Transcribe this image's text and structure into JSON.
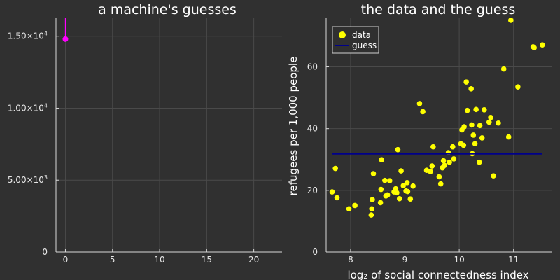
{
  "colors": {
    "background": "#303030",
    "loss": "#ff00ff",
    "data": "#ffff00",
    "guess": "#00008b"
  },
  "chart_data": [
    {
      "type": "line",
      "title": "a machine's guesses",
      "xlabel": "",
      "ylabel": "",
      "xlim": [
        -1,
        23
      ],
      "ylim": [
        0,
        16300
      ],
      "xticks": [
        {
          "v": 0,
          "label": "0"
        },
        {
          "v": 5,
          "label": "5"
        },
        {
          "v": 10,
          "label": "10"
        },
        {
          "v": 15,
          "label": "15"
        },
        {
          "v": 20,
          "label": "20"
        }
      ],
      "yticks": [
        {
          "v": 0,
          "label": "0",
          "exp": ""
        },
        {
          "v": 5000,
          "label": "5.00×10",
          "exp": "3"
        },
        {
          "v": 10000,
          "label": "1.00×10",
          "exp": "4"
        },
        {
          "v": 15000,
          "label": "1.50×10",
          "exp": "4"
        }
      ],
      "series": [
        {
          "x": [
            0,
            0
          ],
          "y": [
            14800,
            16300
          ]
        }
      ],
      "marker": {
        "x": 0,
        "y": 14800
      }
    },
    {
      "type": "scatter",
      "title": "the data and the guess",
      "xlabel": "log₂ of social connectedness index",
      "ylabel": "refugees per 1,000 people",
      "xlim": [
        7.55,
        11.7
      ],
      "ylim": [
        0,
        76
      ],
      "xticks": [
        {
          "v": 8,
          "label": "8"
        },
        {
          "v": 9,
          "label": "9"
        },
        {
          "v": 10,
          "label": "10"
        },
        {
          "v": 11,
          "label": "11"
        }
      ],
      "yticks": [
        {
          "v": 0,
          "label": "0"
        },
        {
          "v": 20,
          "label": "20"
        },
        {
          "v": 40,
          "label": "40"
        },
        {
          "v": 60,
          "label": "60"
        }
      ],
      "legend": {
        "position": "top-left",
        "entries": [
          "data",
          "guess"
        ]
      },
      "series": [
        {
          "name": "data",
          "points": [
            [
              7.66,
              19.5
            ],
            [
              7.72,
              27.1
            ],
            [
              7.75,
              17.6
            ],
            [
              7.97,
              14.0
            ],
            [
              8.08,
              15.1
            ],
            [
              8.38,
              12.0
            ],
            [
              8.39,
              14.0
            ],
            [
              8.4,
              17.0
            ],
            [
              8.42,
              25.4
            ],
            [
              8.55,
              16.0
            ],
            [
              8.56,
              20.3
            ],
            [
              8.57,
              29.9
            ],
            [
              8.63,
              23.2
            ],
            [
              8.65,
              18.2
            ],
            [
              8.68,
              18.5
            ],
            [
              8.72,
              23.1
            ],
            [
              8.8,
              19.5
            ],
            [
              8.83,
              20.5
            ],
            [
              8.85,
              19.2
            ],
            [
              8.87,
              33.2
            ],
            [
              8.9,
              17.3
            ],
            [
              8.93,
              26.3
            ],
            [
              8.97,
              21.5
            ],
            [
              9.02,
              19.8
            ],
            [
              9.04,
              22.5
            ],
            [
              9.05,
              19.6
            ],
            [
              9.1,
              17.2
            ],
            [
              9.15,
              21.4
            ],
            [
              9.27,
              48.1
            ],
            [
              9.33,
              45.5
            ],
            [
              9.4,
              26.5
            ],
            [
              9.47,
              26.1
            ],
            [
              9.5,
              27.9
            ],
            [
              9.52,
              34.1
            ],
            [
              9.63,
              24.4
            ],
            [
              9.66,
              22.1
            ],
            [
              9.69,
              27.3
            ],
            [
              9.71,
              29.6
            ],
            [
              9.73,
              28.1
            ],
            [
              9.8,
              32.2
            ],
            [
              9.82,
              29.1
            ],
            [
              9.88,
              34.1
            ],
            [
              9.9,
              30.2
            ],
            [
              10.03,
              35.1
            ],
            [
              10.05,
              39.6
            ],
            [
              10.08,
              34.6
            ],
            [
              10.09,
              40.6
            ],
            [
              10.13,
              55.1
            ],
            [
              10.15,
              45.9
            ],
            [
              10.22,
              52.9
            ],
            [
              10.23,
              41.2
            ],
            [
              10.24,
              31.9
            ],
            [
              10.26,
              37.9
            ],
            [
              10.29,
              35.1
            ],
            [
              10.31,
              46.2
            ],
            [
              10.37,
              29.1
            ],
            [
              10.38,
              41.0
            ],
            [
              10.42,
              37.0
            ],
            [
              10.46,
              46.1
            ],
            [
              10.55,
              42.1
            ],
            [
              10.58,
              43.6
            ],
            [
              10.63,
              24.7
            ],
            [
              10.72,
              41.8
            ],
            [
              10.82,
              59.3
            ],
            [
              10.91,
              37.3
            ],
            [
              10.95,
              75.1
            ],
            [
              11.08,
              53.5
            ],
            [
              11.36,
              66.5
            ],
            [
              11.38,
              66.2
            ],
            [
              11.53,
              67.1
            ]
          ]
        },
        {
          "name": "guess",
          "x": [
            7.66,
            11.53
          ],
          "y": [
            31.8,
            31.8
          ]
        }
      ]
    }
  ]
}
